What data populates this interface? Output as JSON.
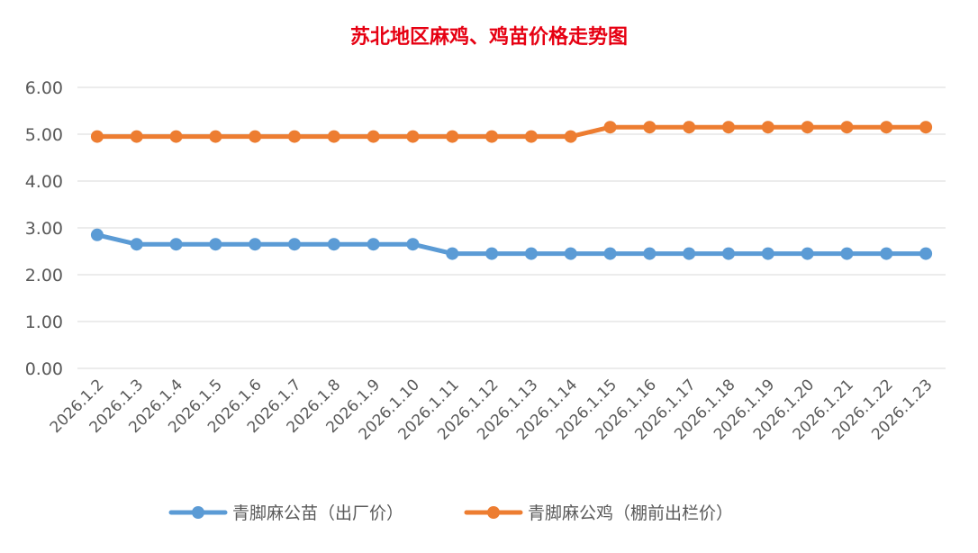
{
  "chart_data": {
    "type": "line",
    "title": "苏北地区麻鸡、鸡苗价格走势图",
    "xlabel": "",
    "ylabel": "",
    "ylim": [
      0,
      6
    ],
    "yticks": [
      "0.00",
      "1.00",
      "2.00",
      "3.00",
      "4.00",
      "5.00",
      "6.00"
    ],
    "grid": true,
    "legend_position": "bottom",
    "categories": [
      "2026.1.2",
      "2026.1.3",
      "2026.1.4",
      "2026.1.5",
      "2026.1.6",
      "2026.1.7",
      "2026.1.8",
      "2026.1.9",
      "2026.1.10",
      "2026.1.11",
      "2026.1.12",
      "2026.1.13",
      "2026.1.14",
      "2026.1.15",
      "2026.1.16",
      "2026.1.17",
      "2026.1.18",
      "2026.1.19",
      "2026.1.20",
      "2026.1.21",
      "2026.1.22",
      "2026.1.23"
    ],
    "series": [
      {
        "name": "青脚麻公苗（出厂价）",
        "color": "#5b9bd5",
        "values": [
          2.85,
          2.65,
          2.65,
          2.65,
          2.65,
          2.65,
          2.65,
          2.65,
          2.65,
          2.45,
          2.45,
          2.45,
          2.45,
          2.45,
          2.45,
          2.45,
          2.45,
          2.45,
          2.45,
          2.45,
          2.45,
          2.45
        ]
      },
      {
        "name": "青脚麻公鸡（棚前出栏价）",
        "color": "#ed7d31",
        "values": [
          4.95,
          4.95,
          4.95,
          4.95,
          4.95,
          4.95,
          4.95,
          4.95,
          4.95,
          4.95,
          4.95,
          4.95,
          4.95,
          5.15,
          5.15,
          5.15,
          5.15,
          5.15,
          5.15,
          5.15,
          5.15,
          5.15
        ]
      }
    ]
  }
}
